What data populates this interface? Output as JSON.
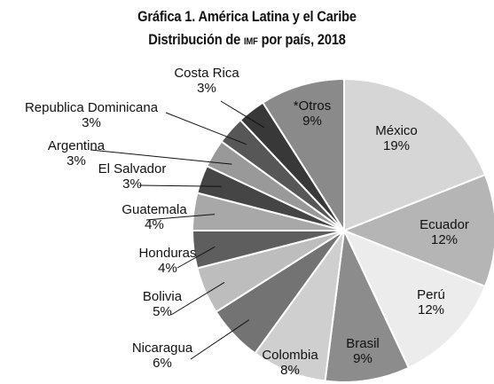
{
  "chart_data": {
    "type": "pie",
    "title": "Gráfica 1. América Latina y el Caribe",
    "subtitle_prefix": "Distribución de ",
    "subtitle_smallcaps": "IMF",
    "subtitle_suffix": " por país, 2018",
    "slices": [
      {
        "label": "México",
        "value": 19,
        "value_label": "19%",
        "color": "#d6d6d6"
      },
      {
        "label": "Ecuador",
        "value": 12,
        "value_label": "12%",
        "color": "#b5b5b5"
      },
      {
        "label": "Perú",
        "value": 12,
        "value_label": "12%",
        "color": "#ececec"
      },
      {
        "label": "Brasil",
        "value": 9,
        "value_label": "9%",
        "color": "#8c8c8c"
      },
      {
        "label": "Colombia",
        "value": 8,
        "value_label": "8%",
        "color": "#cfcfcf"
      },
      {
        "label": "Nicaragua",
        "value": 6,
        "value_label": "6%",
        "color": "#737373"
      },
      {
        "label": "Bolivia",
        "value": 5,
        "value_label": "5%",
        "color": "#bdbdbd"
      },
      {
        "label": "Honduras",
        "value": 4,
        "value_label": "4%",
        "color": "#5e5e5e"
      },
      {
        "label": "Guatemala",
        "value": 4,
        "value_label": "4%",
        "color": "#a8a8a8"
      },
      {
        "label": "El Salvador",
        "value": 3,
        "value_label": "3%",
        "color": "#454545"
      },
      {
        "label": "Argentina",
        "value": 3,
        "value_label": "3%",
        "color": "#999999"
      },
      {
        "label": "Republica Dominicana",
        "value": 3,
        "value_label": "3%",
        "color": "#575757"
      },
      {
        "label": "Costa Rica",
        "value": 3,
        "value_label": "3%",
        "color": "#383838"
      },
      {
        "label": "*Otros",
        "value": 9,
        "value_label": "9%",
        "color": "#8a8a8a"
      }
    ],
    "start_angle_deg": 0,
    "direction": "clockwise",
    "outline_color": "#ffffff"
  }
}
